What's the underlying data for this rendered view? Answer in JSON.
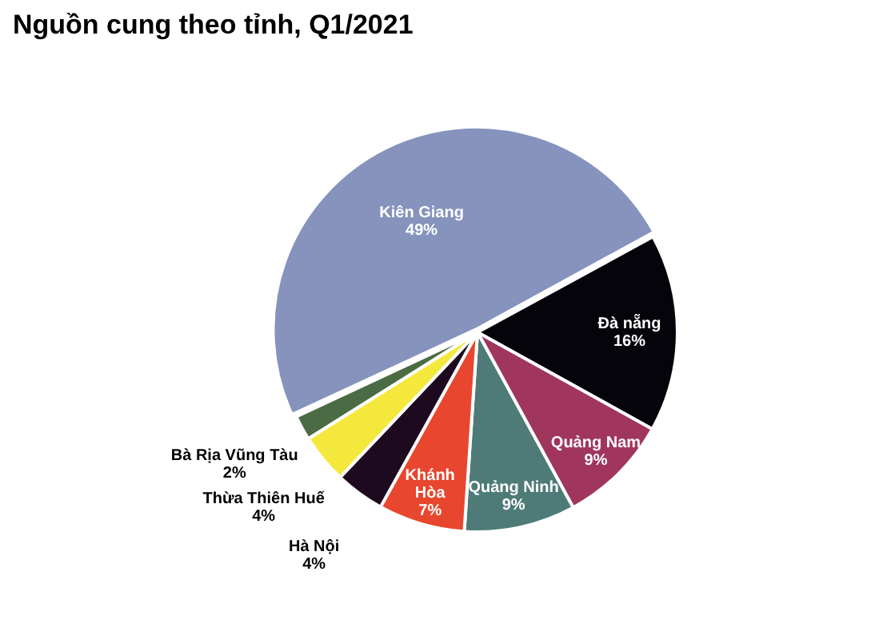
{
  "chart_data": {
    "type": "pie",
    "title": "Nguồn cung theo tỉnh, Q1/2021",
    "categories": [
      "Kiên Giang",
      "Đà nẵng",
      "Quảng Nam",
      "Quảng Ninh",
      "Khánh Hòa",
      "Hà Nội",
      "Thừa Thiên Huế",
      "Bà Rịa Vũng Tàu"
    ],
    "values": [
      49,
      16,
      9,
      9,
      7,
      4,
      4,
      2
    ],
    "value_labels": [
      "49%",
      "16%",
      "9%",
      "9%",
      "7%",
      "4%",
      "4%",
      "2%"
    ],
    "colors": [
      "#8593bd",
      "#05040a",
      "#a0365e",
      "#4e7b78",
      "#e8462e",
      "#1e0a1e",
      "#f5e83c",
      "#4a6b44"
    ],
    "legend": false
  }
}
